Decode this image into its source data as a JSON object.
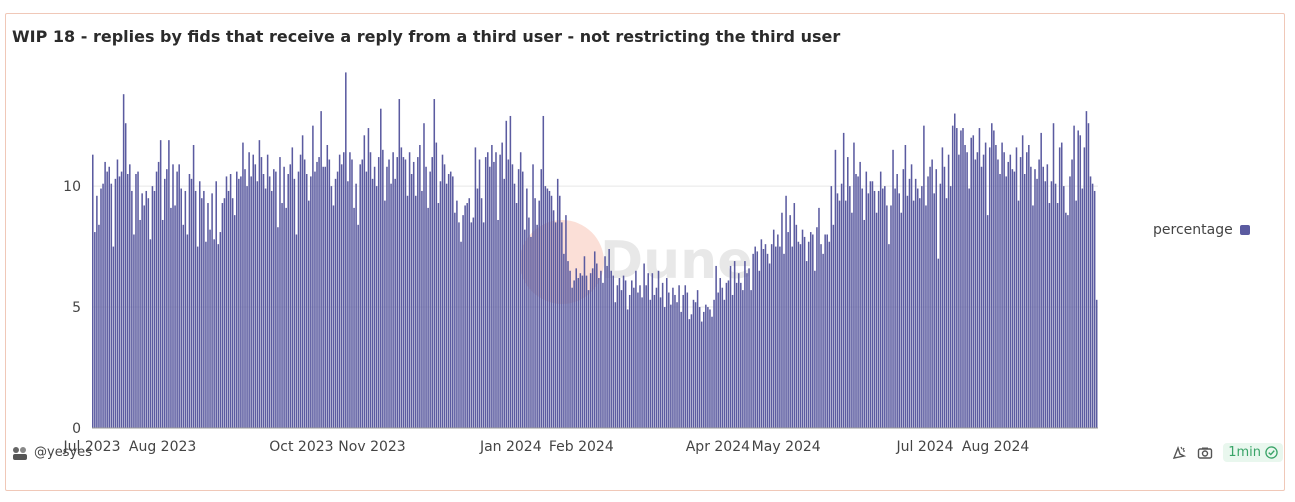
{
  "header": {
    "title": "WIP 18 - replies by fids that receive a reply from a third user - not restricting the third user"
  },
  "footer": {
    "author": "@yesyes",
    "refresh_label": "1min"
  },
  "watermark": "Dune",
  "colors": {
    "bar": "#5b5ba0",
    "card_border": "#f0c8b8",
    "badge_bg": "#e9f7ee",
    "badge_text": "#3aa468"
  },
  "icons": [
    "user-avatar-icon",
    "emoji-reaction-icon",
    "camera-icon",
    "check-circle-icon"
  ],
  "chart_data": {
    "type": "bar",
    "series": [
      {
        "name": "percentage",
        "values": [
          11.3,
          8.1,
          9.6,
          8.4,
          9.9,
          10.1,
          11.0,
          10.6,
          10.8,
          10.1,
          7.5,
          10.3,
          11.1,
          10.4,
          10.6,
          13.8,
          12.6,
          10.5,
          10.9,
          9.8,
          8.0,
          10.5,
          10.6,
          8.6,
          9.7,
          9.2,
          9.8,
          9.5,
          7.8,
          10.0,
          9.8,
          10.6,
          11.0,
          11.9,
          8.6,
          10.3,
          10.7,
          11.9,
          9.1,
          10.9,
          9.2,
          10.6,
          10.9,
          9.9,
          8.4,
          9.8,
          8.0,
          10.5,
          10.3,
          11.7,
          9.8,
          7.5,
          10.2,
          9.5,
          9.8,
          7.7,
          9.3,
          8.2,
          9.7,
          7.8,
          10.2,
          7.6,
          8.1,
          9.3,
          9.5,
          10.4,
          9.8,
          10.5,
          9.5,
          8.8,
          10.6,
          10.3,
          10.4,
          11.8,
          10.7,
          10.0,
          11.4,
          10.4,
          11.3,
          10.9,
          10.2,
          11.9,
          11.2,
          10.5,
          9.9,
          11.3,
          10.4,
          9.8,
          10.7,
          10.6,
          8.3,
          11.2,
          9.3,
          10.8,
          9.1,
          10.5,
          10.9,
          11.6,
          10.3,
          8.0,
          10.6,
          11.3,
          12.1,
          11.1,
          10.5,
          9.4,
          10.4,
          12.5,
          10.6,
          11.0,
          11.2,
          13.1,
          10.8,
          10.8,
          11.7,
          11.1,
          10.0,
          9.2,
          10.3,
          10.6,
          11.3,
          10.9,
          11.4,
          14.7,
          10.2,
          11.4,
          11.1,
          9.1,
          10.1,
          8.4,
          10.9,
          11.1,
          12.1,
          10.6,
          12.4,
          11.4,
          10.3,
          10.8,
          10.0,
          11.2,
          13.2,
          11.5,
          9.4,
          10.8,
          11.1,
          10.1,
          11.4,
          10.3,
          11.2,
          13.6,
          11.6,
          11.2,
          11.1,
          9.6,
          11.4,
          10.5,
          11.0,
          9.6,
          11.2,
          11.7,
          9.8,
          12.6,
          10.8,
          9.1,
          10.6,
          11.2,
          13.6,
          11.8,
          9.3,
          10.2,
          11.3,
          10.9,
          10.1,
          10.5,
          10.6,
          10.4,
          8.9,
          9.4,
          8.5,
          7.7,
          8.8,
          9.2,
          9.3,
          9.5,
          8.5,
          8.7,
          11.6,
          9.9,
          11.1,
          9.5,
          8.5,
          11.2,
          11.4,
          10.8,
          11.7,
          11.0,
          11.4,
          8.6,
          11.3,
          11.8,
          10.3,
          12.7,
          11.1,
          12.9,
          10.9,
          10.1,
          9.3,
          10.7,
          11.4,
          10.6,
          8.2,
          9.9,
          8.7,
          7.9,
          10.9,
          9.5,
          8.4,
          9.4,
          10.7,
          12.9,
          10.0,
          9.9,
          9.8,
          9.6,
          9.0,
          8.5,
          10.3,
          9.6,
          8.5,
          7.2,
          8.8,
          6.9,
          6.5,
          5.8,
          6.1,
          6.6,
          6.2,
          6.4,
          6.3,
          7.1,
          6.3,
          5.7,
          6.4,
          6.6,
          7.3,
          6.8,
          6.2,
          6.5,
          6.0,
          7.1,
          6.7,
          7.4,
          6.5,
          6.3,
          5.2,
          5.9,
          6.2,
          5.7,
          6.3,
          6.1,
          4.9,
          5.5,
          6.1,
          5.8,
          6.5,
          5.6,
          5.9,
          5.4,
          6.8,
          5.9,
          6.4,
          5.3,
          6.4,
          5.5,
          5.8,
          6.5,
          5.4,
          6.0,
          5.0,
          6.2,
          5.6,
          5.1,
          5.8,
          5.5,
          5.2,
          5.9,
          4.8,
          5.5,
          5.9,
          5.6,
          4.5,
          4.7,
          5.3,
          5.2,
          5.7,
          5.0,
          4.4,
          4.8,
          5.1,
          5.0,
          4.9,
          4.6,
          5.3,
          6.7,
          5.6,
          6.2,
          5.8,
          5.3,
          6.0,
          6.1,
          6.7,
          5.5,
          6.9,
          6.0,
          6.4,
          6.0,
          5.7,
          6.9,
          6.4,
          6.6,
          5.7,
          7.2,
          7.5,
          7.3,
          6.5,
          7.8,
          7.4,
          7.6,
          7.2,
          6.8,
          7.6,
          8.2,
          7.5,
          8.0,
          7.5,
          8.9,
          7.2,
          9.6,
          8.1,
          8.8,
          7.5,
          9.3,
          8.4,
          7.7,
          7.6,
          8.2,
          7.9,
          6.9,
          7.7,
          8.1,
          8.0,
          6.5,
          8.3,
          9.1,
          7.6,
          7.2,
          8.0,
          8.0,
          7.7,
          10.0,
          8.4,
          11.5,
          9.7,
          9.4,
          10.1,
          12.2,
          9.4,
          11.2,
          10.0,
          8.9,
          11.8,
          10.5,
          10.4,
          11.0,
          9.9,
          8.6,
          10.6,
          9.7,
          10.2,
          10.2,
          9.8,
          8.9,
          9.8,
          10.6,
          9.9,
          10.0,
          9.2,
          7.6,
          9.2,
          11.5,
          9.9,
          10.5,
          9.7,
          8.9,
          10.7,
          11.7,
          9.6,
          10.3,
          10.9,
          9.4,
          10.3,
          9.9,
          9.5,
          10.0,
          12.5,
          9.2,
          10.4,
          10.8,
          11.1,
          9.7,
          10.7,
          7.0,
          10.1,
          11.6,
          10.8,
          9.5,
          11.3,
          10.0,
          12.5,
          13.0,
          12.4,
          11.3,
          12.3,
          12.4,
          11.7,
          11.4,
          9.9,
          12.0,
          12.1,
          11.1,
          11.4,
          12.4,
          10.8,
          11.3,
          11.8,
          8.8,
          11.6,
          12.6,
          12.3,
          11.7,
          11.1,
          10.5,
          11.8,
          11.4,
          10.4,
          11.0,
          11.3,
          10.7,
          10.6,
          11.6,
          9.4,
          11.2,
          12.1,
          10.5,
          11.4,
          11.7,
          10.8,
          9.2,
          10.7,
          10.3,
          11.1,
          12.2,
          10.8,
          10.2,
          10.9,
          9.3,
          10.2,
          12.6,
          10.1,
          9.3,
          11.6,
          11.8,
          10.0,
          8.9,
          8.8,
          10.4,
          11.1,
          12.5,
          9.4,
          12.3,
          12.1,
          9.9,
          11.6,
          13.1,
          12.6,
          10.4,
          10.1,
          9.8,
          5.3
        ]
      }
    ],
    "x_start": "2023-07-01",
    "x_end": "2024-09-15",
    "xticks": [
      "Jul 2023",
      "Aug 2023",
      "Oct 2023",
      "Nov 2023",
      "Jan 2024",
      "Feb 2024",
      "Apr 2024",
      "May 2024",
      "Jul 2024",
      "Aug 2024"
    ],
    "yticks": [
      0,
      5,
      10
    ],
    "ylim": [
      0,
      14.8
    ],
    "legend": "right",
    "gridlines": "horizontal",
    "xlabel": "",
    "ylabel": ""
  }
}
